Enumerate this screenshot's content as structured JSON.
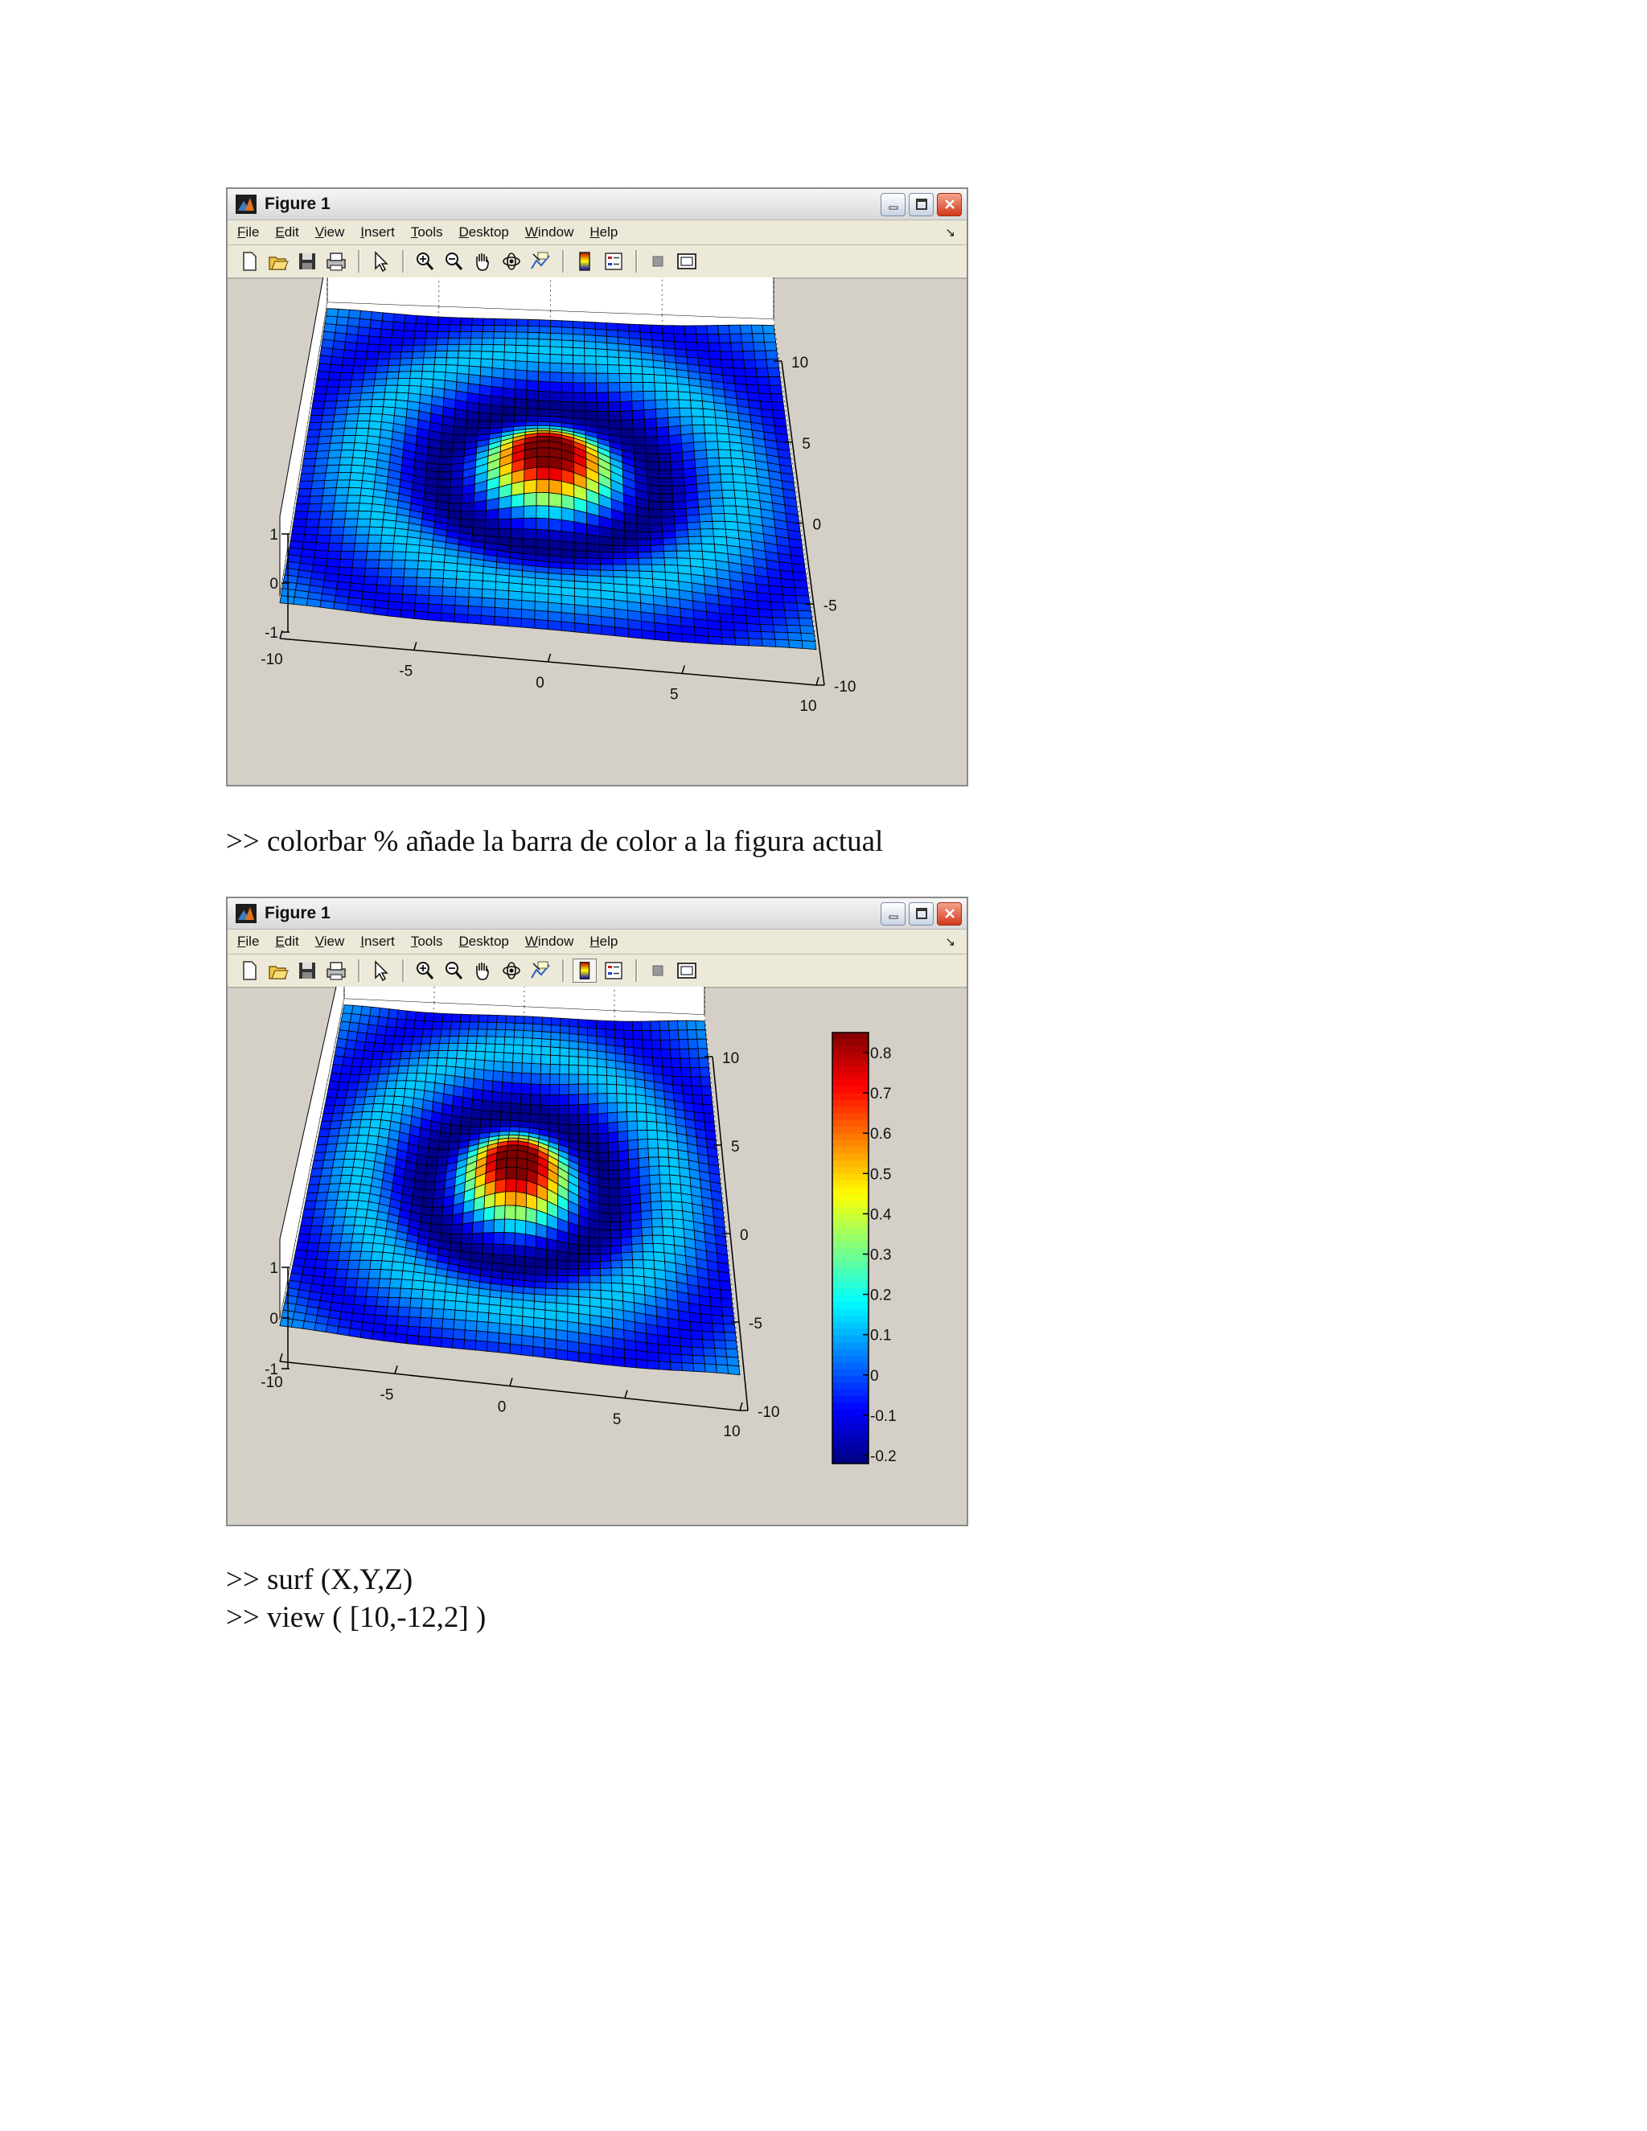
{
  "figure_window": {
    "title": "Figure 1",
    "menu": [
      "File",
      "Edit",
      "View",
      "Insert",
      "Tools",
      "Desktop",
      "Window",
      "Help"
    ],
    "menu_underline": [
      "F",
      "E",
      "V",
      "I",
      "T",
      "D",
      "W",
      "H"
    ],
    "menu_rest": [
      "ile",
      "dit",
      "iew",
      "nsert",
      "ools",
      "esktop",
      "indow",
      "elp"
    ],
    "toolbar_icons": [
      "new-figure-icon",
      "open-file-icon",
      "save-icon",
      "print-icon",
      "edit-plot-arrow-icon",
      "zoom-in-icon",
      "zoom-out-icon",
      "pan-hand-icon",
      "rotate-3d-icon",
      "data-cursor-icon",
      "insert-colorbar-icon",
      "insert-legend-icon",
      "hide-plot-tools-icon",
      "show-plot-tools-icon"
    ],
    "colors": {
      "window_bg": "#d4d0c8",
      "close_button": "#d2381c"
    }
  },
  "figure1": {
    "axes": {
      "z_ticks": [
        "1",
        "0",
        "-1"
      ],
      "x_ticks": [
        "-10",
        "-5",
        "0",
        "5",
        "10"
      ],
      "y_ticks": [
        "10",
        "5",
        "0",
        "-5",
        "-10"
      ]
    },
    "colorbar_pressed": false
  },
  "figure2": {
    "axes": {
      "z_ticks": [
        "1",
        "0",
        "-1"
      ],
      "x_ticks": [
        "-10",
        "-5",
        "0",
        "5",
        "10"
      ],
      "y_ticks": [
        "10",
        "5",
        "0",
        "-5",
        "-10"
      ]
    },
    "colorbar_pressed": true,
    "colorbar_ticks": [
      "0.8",
      "0.7",
      "0.6",
      "0.5",
      "0.4",
      "0.3",
      "0.2",
      "0.1",
      "0",
      "-0.1",
      "-0.2"
    ]
  },
  "chart_data": [
    {
      "type": "surface",
      "colormap": "jet",
      "x_range": [
        -10,
        10
      ],
      "y_range": [
        -10,
        10
      ],
      "zlim": [
        -1,
        1
      ],
      "x_ticks": [
        -10,
        -5,
        0,
        5,
        10
      ],
      "y_ticks": [
        -10,
        -5,
        0,
        5,
        10
      ],
      "z_ticks": [
        -1,
        0,
        1
      ],
      "grid": true,
      "colorbar": false
    },
    {
      "type": "surface",
      "colormap": "jet",
      "x_range": [
        -10,
        10
      ],
      "y_range": [
        -10,
        10
      ],
      "zlim": [
        -1,
        1
      ],
      "x_ticks": [
        -10,
        -5,
        0,
        5,
        10
      ],
      "y_ticks": [
        -10,
        -5,
        0,
        5,
        10
      ],
      "z_ticks": [
        -1,
        0,
        1
      ],
      "grid": true,
      "colorbar": true,
      "colorbar_range": [
        -0.22,
        0.85
      ],
      "colorbar_ticks": [
        0.8,
        0.7,
        0.6,
        0.5,
        0.4,
        0.3,
        0.2,
        0.1,
        0,
        -0.1,
        -0.2
      ]
    }
  ],
  "document": {
    "line1": ">> colorbar % añade la barra de color a la figura actual",
    "line2": ">> surf (X,Y,Z)",
    "line3": ">> view ( [10,-12,2] )"
  }
}
